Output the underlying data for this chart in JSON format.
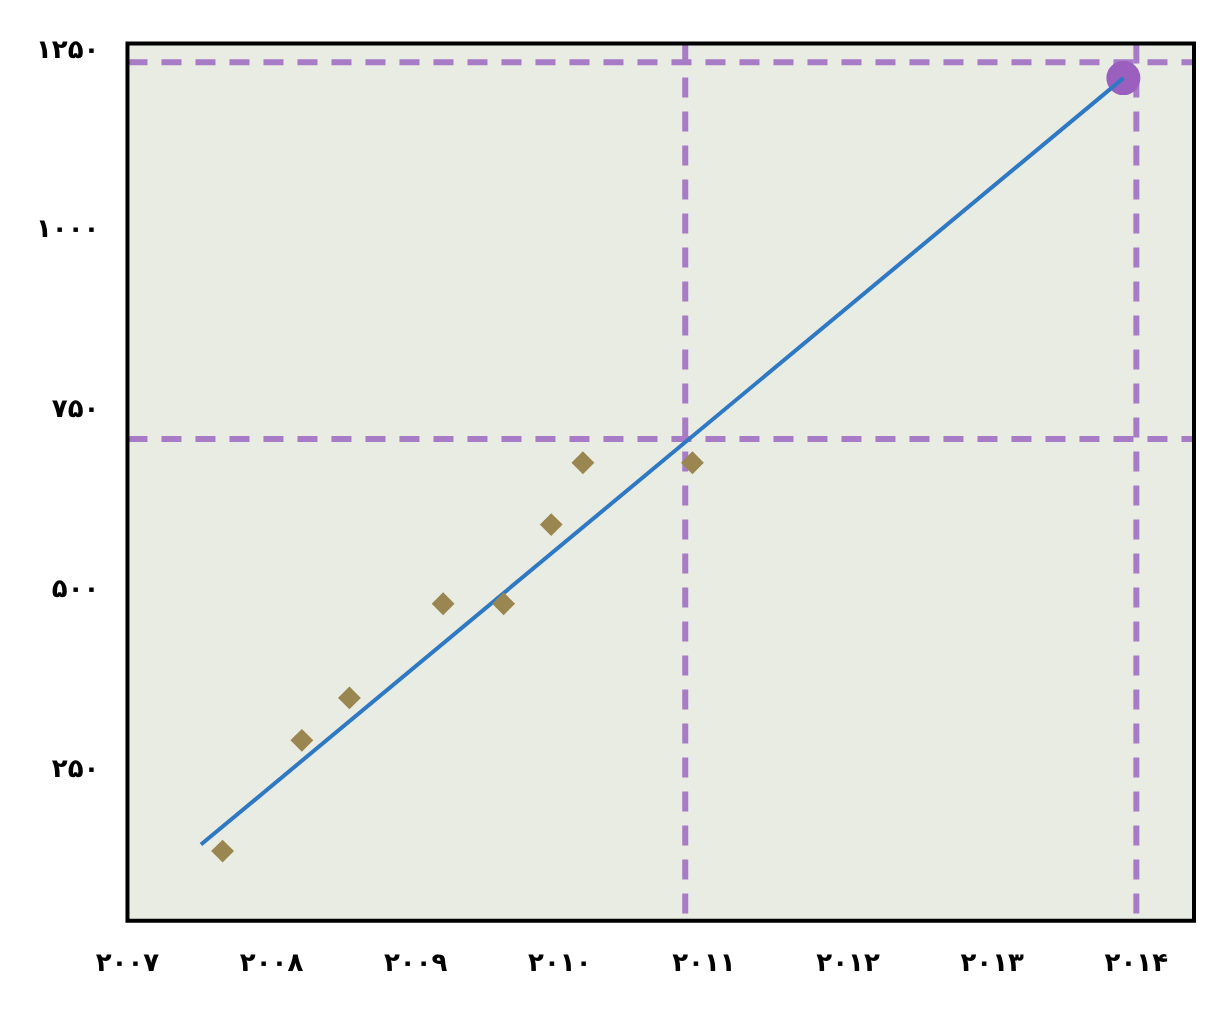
{
  "chart_data": {
    "type": "scatter",
    "xlim": [
      2007,
      2014.4
    ],
    "ylim": [
      40,
      1260
    ],
    "xticks": [
      {
        "value": 2007,
        "label": "۲۰۰۷"
      },
      {
        "value": 2008,
        "label": "۲۰۰۸"
      },
      {
        "value": 2009,
        "label": "۲۰۰۹"
      },
      {
        "value": 2010,
        "label": "۲۰۱۰"
      },
      {
        "value": 2011,
        "label": "۲۰۱۱"
      },
      {
        "value": 2012,
        "label": "۲۰۱۲"
      },
      {
        "value": 2013,
        "label": "۲۰۱۳"
      },
      {
        "value": 2014,
        "label": "۲۰۱۴"
      }
    ],
    "yticks": [
      {
        "value": 250,
        "label": "۲۵۰"
      },
      {
        "value": 500,
        "label": "۵۰۰"
      },
      {
        "value": 750,
        "label": "۷۵۰"
      },
      {
        "value": 1000,
        "label": "۱۰۰۰"
      },
      {
        "value": 1250,
        "label": "۱۲۵۰"
      }
    ],
    "grid": false,
    "legend": false,
    "series": [
      {
        "marker": "diamond",
        "color": "#9a8650",
        "x": [
          2007.66,
          2008.21,
          2008.54,
          2009.19,
          2009.61,
          2009.94,
          2010.16,
          2010.92
        ],
        "values": [
          137,
          291,
          350,
          481,
          481,
          591,
          677,
          677
        ]
      },
      {
        "type": "line",
        "marker": "none",
        "color": "#2f78c4",
        "x": [
          2007.51,
          2013.91
        ],
        "values": [
          146,
          1212
        ]
      },
      {
        "type": "scatter",
        "marker": "circle",
        "color": "#9b5fc0",
        "x": [
          2013.91
        ],
        "values": [
          1212
        ]
      }
    ],
    "ref_lines": [
      {
        "axis": "y",
        "value": 710,
        "color": "#a77bc6",
        "line_style": "dashed"
      },
      {
        "axis": "y",
        "value": 1234,
        "color": "#a77bc6",
        "line_style": "dashed"
      },
      {
        "axis": "x",
        "value": 2010.87,
        "color": "#a77bc6",
        "line_style": "dashed"
      },
      {
        "axis": "x",
        "value": 2014,
        "color": "#a77bc6",
        "line_style": "dashed"
      }
    ]
  }
}
